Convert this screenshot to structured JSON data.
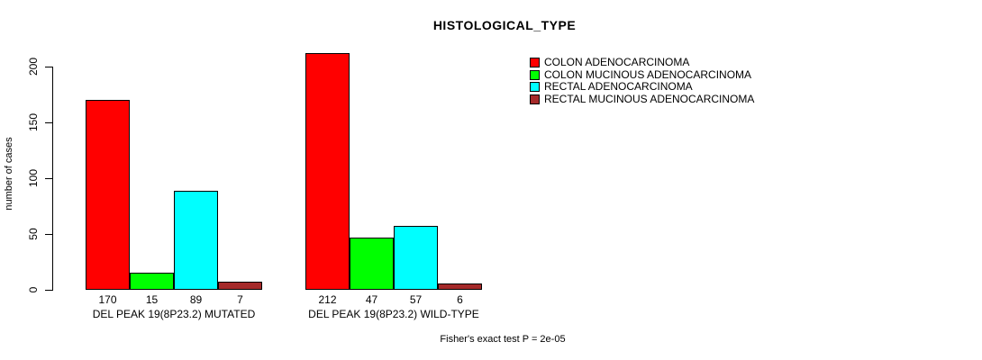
{
  "chart_data": {
    "type": "bar",
    "title": "HISTOLOGICAL_TYPE",
    "xlabel": "",
    "ylabel": "number of cases",
    "ylim": [
      0,
      215
    ],
    "yticks": [
      0,
      50,
      100,
      150,
      200
    ],
    "grid": false,
    "legend_position": "top-right",
    "categories": [
      "DEL PEAK 19(8P23.2) MUTATED",
      "DEL PEAK 19(8P23.2) WILD-TYPE"
    ],
    "series": [
      {
        "name": "COLON ADENOCARCINOMA",
        "color": "#FF0000",
        "values": [
          170,
          212
        ]
      },
      {
        "name": "COLON MUCINOUS ADENOCARCINOMA",
        "color": "#00FF00",
        "values": [
          15,
          47
        ]
      },
      {
        "name": "RECTAL ADENOCARCINOMA",
        "color": "#00FFFF",
        "values": [
          89,
          57
        ]
      },
      {
        "name": "RECTAL MUCINOUS ADENOCARCINOMA",
        "color": "#A52A2A",
        "values": [
          7,
          6
        ]
      }
    ],
    "bar_value_labels": true,
    "annotation": "Fisher's exact test P = 2e-05"
  },
  "colors": {
    "axis": "#000000",
    "text": "#000000",
    "background": "#FFFFFF"
  }
}
